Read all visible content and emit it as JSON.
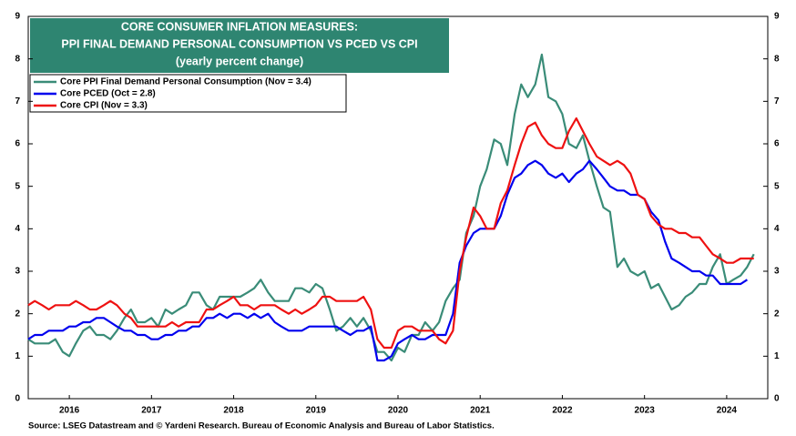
{
  "chart_data": {
    "type": "line",
    "title": "CORE CONSUMER  INFLATION MEASURES:",
    "subtitle": "PPI FINAL DEMAND PERSONAL CONSUMPTION VS PCED VS CPI",
    "subtitle2": "(yearly percent change)",
    "source": "Source: LSEG Datastream and © Yardeni Research. Bureau of Economic Analysis and Bureau of Labor Statistics.",
    "xlim": [
      2016,
      2025
    ],
    "xticks": [
      {
        "value": 2016.5,
        "label": "2016"
      },
      {
        "value": 2017.5,
        "label": "2017"
      },
      {
        "value": 2018.5,
        "label": "2018"
      },
      {
        "value": 2019.5,
        "label": "2019"
      },
      {
        "value": 2020.5,
        "label": "2020"
      },
      {
        "value": 2021.5,
        "label": "2021"
      },
      {
        "value": 2022.5,
        "label": "2022"
      },
      {
        "value": 2023.5,
        "label": "2023"
      },
      {
        "value": 2024.5,
        "label": "2024"
      }
    ],
    "ylim": [
      0,
      9
    ],
    "yticks": [
      0,
      1,
      2,
      3,
      4,
      5,
      6,
      7,
      8,
      9
    ],
    "grid": false,
    "legend": "upper left",
    "x": [
      2016,
      2016.08,
      2016.17,
      2016.25,
      2016.33,
      2016.42,
      2016.5,
      2016.58,
      2016.67,
      2016.75,
      2016.83,
      2016.92,
      2017,
      2017.08,
      2017.17,
      2017.25,
      2017.33,
      2017.42,
      2017.5,
      2017.58,
      2017.67,
      2017.75,
      2017.83,
      2017.92,
      2018,
      2018.08,
      2018.17,
      2018.25,
      2018.33,
      2018.42,
      2018.5,
      2018.58,
      2018.67,
      2018.75,
      2018.83,
      2018.92,
      2019,
      2019.08,
      2019.17,
      2019.25,
      2019.33,
      2019.42,
      2019.5,
      2019.58,
      2019.67,
      2019.75,
      2019.83,
      2019.92,
      2020,
      2020.08,
      2020.17,
      2020.25,
      2020.33,
      2020.42,
      2020.5,
      2020.58,
      2020.67,
      2020.75,
      2020.83,
      2020.92,
      2021,
      2021.08,
      2021.17,
      2021.25,
      2021.33,
      2021.42,
      2021.5,
      2021.58,
      2021.67,
      2021.75,
      2021.83,
      2021.92,
      2022,
      2022.08,
      2022.17,
      2022.25,
      2022.33,
      2022.42,
      2022.5,
      2022.58,
      2022.67,
      2022.75,
      2022.83,
      2022.92,
      2023,
      2023.08,
      2023.17,
      2023.25,
      2023.33,
      2023.42,
      2023.5,
      2023.58,
      2023.67,
      2023.75,
      2023.83,
      2023.92,
      2024,
      2024.08,
      2024.17,
      2024.25,
      2024.33,
      2024.42,
      2024.5,
      2024.58,
      2024.67,
      2024.75,
      2024.83
    ],
    "series": [
      {
        "name": "Core PPI Final Demand Personal Consumption (Nov = 3.4)",
        "color": "#3a8c78",
        "values": [
          1.4,
          1.3,
          1.3,
          1.3,
          1.4,
          1.1,
          1.0,
          1.3,
          1.6,
          1.7,
          1.5,
          1.5,
          1.4,
          1.6,
          1.9,
          2.1,
          1.8,
          1.8,
          1.9,
          1.7,
          2.1,
          2.0,
          2.1,
          2.2,
          2.5,
          2.5,
          2.2,
          2.1,
          2.4,
          2.4,
          2.4,
          2.4,
          2.5,
          2.6,
          2.8,
          2.5,
          2.3,
          2.3,
          2.3,
          2.6,
          2.6,
          2.5,
          2.7,
          2.6,
          2.1,
          1.6,
          1.7,
          1.9,
          1.7,
          1.9,
          1.6,
          1.1,
          1.1,
          0.9,
          1.2,
          1.1,
          1.5,
          1.5,
          1.8,
          1.6,
          1.8,
          2.3,
          2.6,
          2.8,
          3.9,
          4.3,
          5.0,
          5.4,
          6.1,
          6.0,
          5.5,
          6.7,
          7.4,
          7.1,
          7.4,
          8.1,
          7.1,
          7.0,
          6.7,
          6.0,
          5.9,
          6.2,
          5.6,
          5.0,
          4.5,
          4.4,
          3.1,
          3.3,
          3.0,
          2.9,
          3.0,
          2.6,
          2.7,
          2.4,
          2.1,
          2.2,
          2.4,
          2.5,
          2.7,
          2.7,
          3.1,
          3.4,
          2.7,
          2.8,
          2.9,
          3.1,
          3.4
        ]
      },
      {
        "name": "Core PCED (Oct = 2.8)",
        "color": "#0000ee",
        "values": [
          1.4,
          1.5,
          1.5,
          1.6,
          1.6,
          1.6,
          1.7,
          1.7,
          1.8,
          1.8,
          1.9,
          1.9,
          1.8,
          1.7,
          1.6,
          1.6,
          1.5,
          1.5,
          1.4,
          1.4,
          1.5,
          1.5,
          1.6,
          1.6,
          1.7,
          1.7,
          1.9,
          1.9,
          2.0,
          1.9,
          2.0,
          2.0,
          1.9,
          2.0,
          1.9,
          2.0,
          1.8,
          1.7,
          1.6,
          1.6,
          1.6,
          1.7,
          1.7,
          1.7,
          1.7,
          1.7,
          1.6,
          1.5,
          1.6,
          1.6,
          1.7,
          0.9,
          0.9,
          1.0,
          1.3,
          1.4,
          1.5,
          1.4,
          1.4,
          1.5,
          1.5,
          1.5,
          2.0,
          3.2,
          3.6,
          3.9,
          4.0,
          4.0,
          4.0,
          4.3,
          4.8,
          5.2,
          5.3,
          5.5,
          5.6,
          5.5,
          5.3,
          5.2,
          5.3,
          5.1,
          5.3,
          5.4,
          5.6,
          5.4,
          5.2,
          5.0,
          4.9,
          4.9,
          4.8,
          4.8,
          4.7,
          4.4,
          4.2,
          3.7,
          3.3,
          3.2,
          3.1,
          3.0,
          3.0,
          2.9,
          2.9,
          2.7,
          2.7,
          2.7,
          2.7,
          2.8,
          null
        ]
      },
      {
        "name": "Core CPI (Nov = 3.3)",
        "color": "#ee1111",
        "values": [
          2.2,
          2.3,
          2.2,
          2.1,
          2.2,
          2.2,
          2.2,
          2.3,
          2.2,
          2.1,
          2.1,
          2.2,
          2.3,
          2.2,
          2.0,
          1.9,
          1.7,
          1.7,
          1.7,
          1.7,
          1.7,
          1.8,
          1.7,
          1.8,
          1.8,
          1.8,
          2.1,
          2.1,
          2.2,
          2.3,
          2.4,
          2.2,
          2.2,
          2.1,
          2.2,
          2.2,
          2.2,
          2.1,
          2.0,
          2.1,
          2.0,
          2.1,
          2.2,
          2.4,
          2.4,
          2.3,
          2.3,
          2.3,
          2.3,
          2.4,
          2.1,
          1.4,
          1.2,
          1.2,
          1.6,
          1.7,
          1.7,
          1.6,
          1.6,
          1.6,
          1.4,
          1.3,
          1.6,
          3.0,
          3.8,
          4.5,
          4.3,
          4.0,
          4.0,
          4.6,
          4.9,
          5.5,
          6.0,
          6.4,
          6.5,
          6.2,
          6.0,
          5.9,
          5.9,
          6.3,
          6.6,
          6.3,
          6.0,
          5.7,
          5.6,
          5.5,
          5.6,
          5.5,
          5.3,
          4.8,
          4.7,
          4.3,
          4.1,
          4.0,
          4.0,
          3.9,
          3.9,
          3.8,
          3.8,
          3.6,
          3.4,
          3.3,
          3.2,
          3.2,
          3.3,
          3.3,
          3.3
        ]
      }
    ]
  }
}
